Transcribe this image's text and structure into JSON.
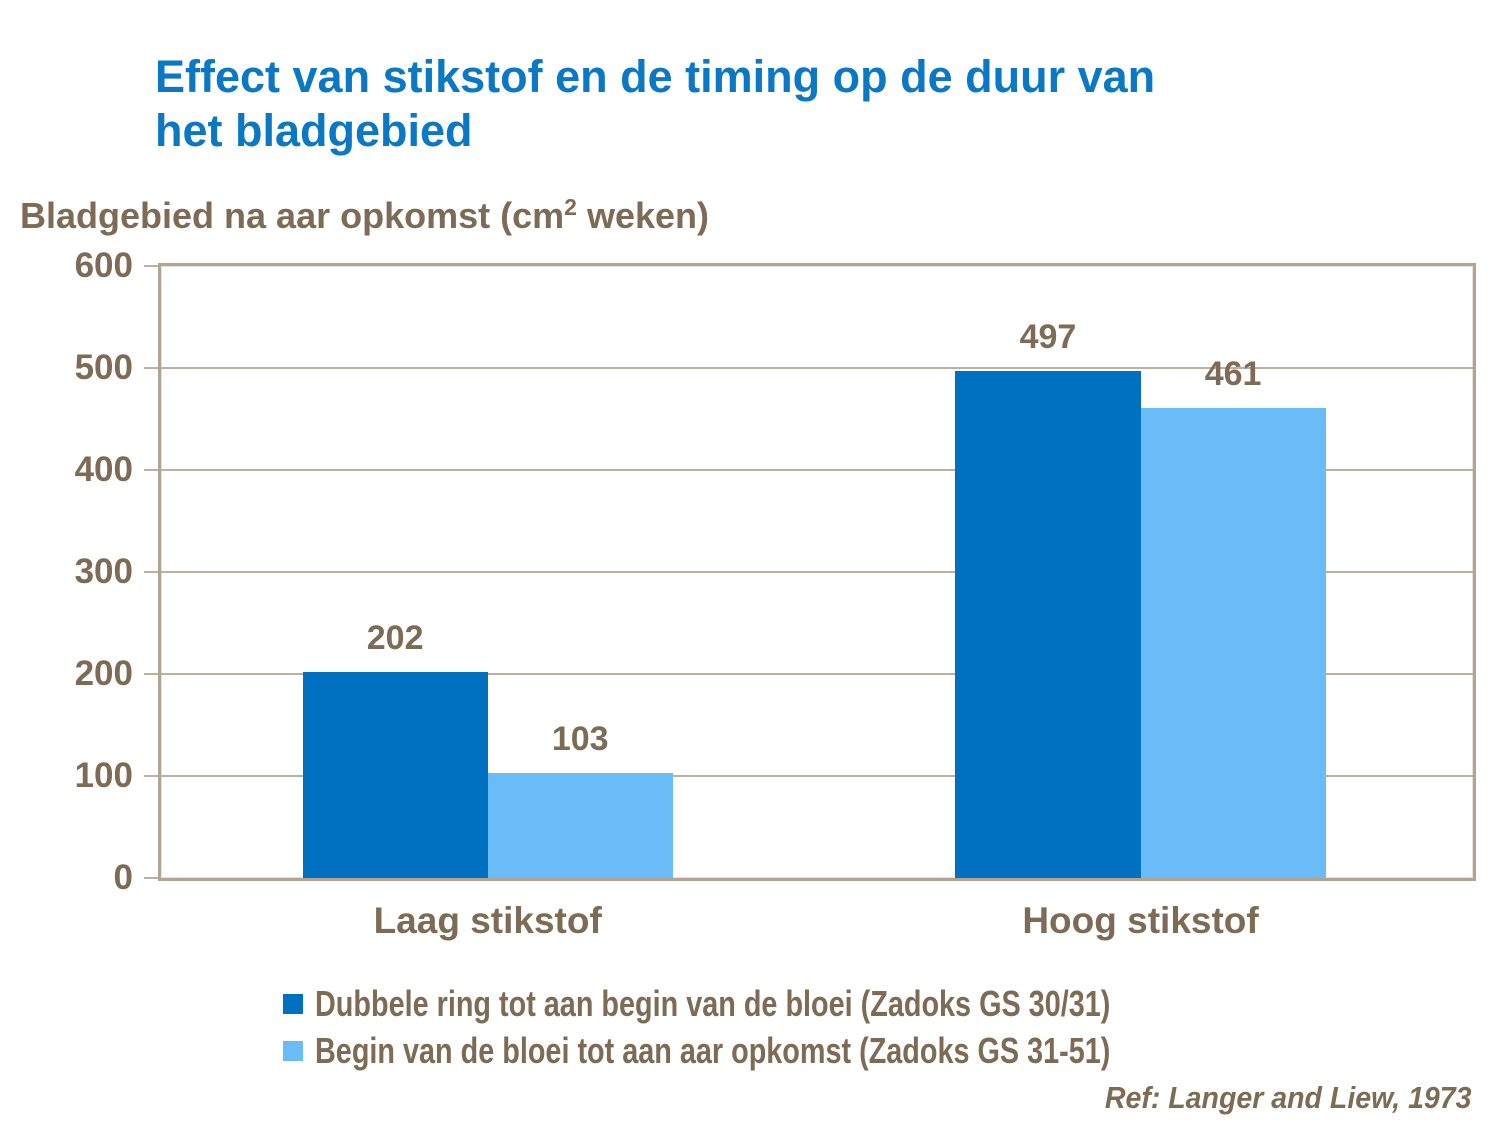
{
  "slide": {
    "title_line1": "Effect van stikstof en de timing op de duur van",
    "title_line2": "het bladgebied",
    "reference": "Ref: Langer and Liew, 1973"
  },
  "axis_title": {
    "prefix": "Bladgebied na aar opkomst (cm",
    "superscript": "2",
    "suffix": " weken)"
  },
  "chart_data": {
    "type": "bar",
    "title": "Effect van stikstof en de timing op de duur van het bladgebied",
    "ylabel": "Bladgebied na aar opkomst (cm2 weken)",
    "xlabel": "",
    "categories": [
      "Laag stikstof",
      "Hoog stikstof"
    ],
    "series": [
      {
        "name": "Dubbele ring tot aan begin van de bloei (Zadoks GS 30/31)",
        "color": "#0070c0",
        "values": [
          202,
          497
        ]
      },
      {
        "name": "Begin van de bloei tot aan aar opkomst (Zadoks GS 31-51)",
        "color": "#6abcf8",
        "values": [
          103,
          461
        ]
      }
    ],
    "ylim": [
      0,
      600
    ],
    "yticks": [
      0,
      100,
      200,
      300,
      400,
      500,
      600
    ],
    "grid": true,
    "legend_position": "bottom",
    "value_labels": true
  },
  "colors": {
    "background": "#ffffff",
    "title_text": "#0a78c4",
    "body_text": "#7d6b55",
    "plot_frame": "#b2a494",
    "gridline": "#bdb0a2",
    "series1": "#0070c0",
    "series2": "#6abcf8"
  }
}
